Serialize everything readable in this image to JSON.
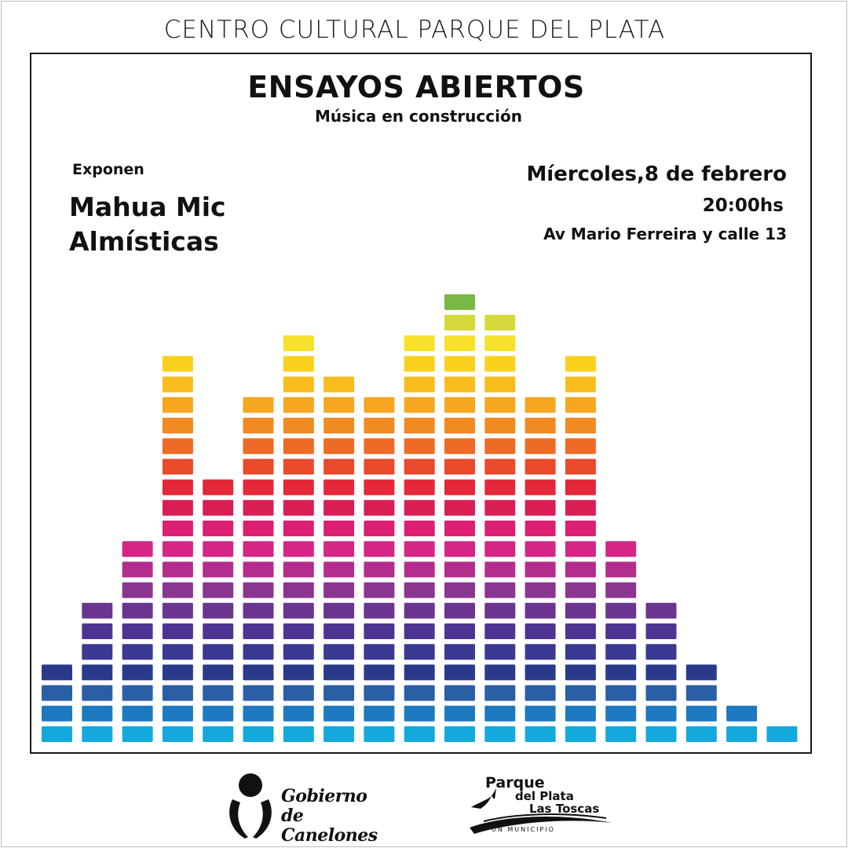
{
  "header": {
    "title": "CENTRO CULTURAL PARQUE DEL PLATA"
  },
  "poster": {
    "title": "ENSAYOS ABIERTOS",
    "subtitle": "Música en construcción",
    "presenters_label": "Exponen",
    "presenters": [
      "Mahua Mic",
      "Almísticas"
    ],
    "date": "Míercoles,8 de febrero",
    "time": "20:00hs",
    "location": "Av Mario Ferreira y calle 13"
  },
  "equalizer": {
    "column_levels": [
      4,
      7,
      10,
      19,
      13,
      17,
      20,
      18,
      17,
      20,
      22,
      21,
      17,
      19,
      10,
      7,
      4,
      2,
      1
    ],
    "segment_colors": [
      "#13a9dc",
      "#1d79c0",
      "#2a5fa6",
      "#2a3a8a",
      "#3a3a92",
      "#4e3492",
      "#6b358f",
      "#8a3590",
      "#b52d8c",
      "#d52686",
      "#dc1f73",
      "#d91e55",
      "#e3283a",
      "#e94a2b",
      "#ee6a25",
      "#f28a22",
      "#f6a61f",
      "#f8bd1c",
      "#f9d11d",
      "#f7e12a",
      "#d5d93a",
      "#7ab845"
    ]
  },
  "footer": {
    "logo_government": {
      "line1": "Gobierno de",
      "line2": "Canelones",
      "icon": "canelones-emblem-icon"
    },
    "logo_municipality": {
      "line1": "Parque",
      "line2": "del Plata",
      "line3": "Las Toscas",
      "tagline": "UN MUNICIPIO",
      "icon": "seagull-wave-icon"
    }
  }
}
